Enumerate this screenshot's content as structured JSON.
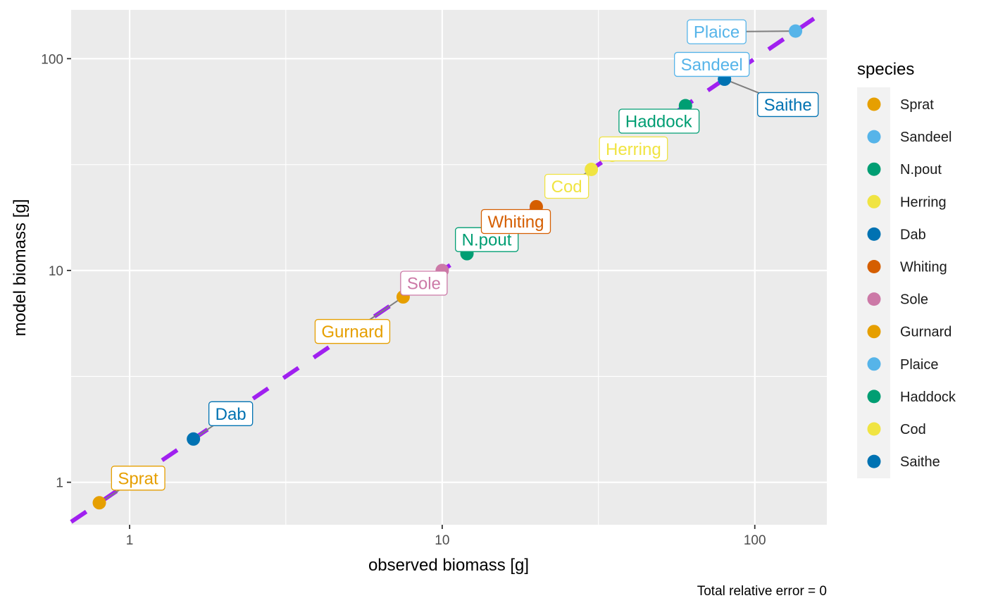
{
  "chart_data": {
    "type": "scatter",
    "x_scale": "log10",
    "y_scale": "log10",
    "xlabel": "observed biomass [g]",
    "ylabel": "model biomass [g]",
    "xlim": [
      0.65,
      170
    ],
    "ylim": [
      0.63,
      170
    ],
    "x_ticks": [
      {
        "value": 1,
        "label": "1"
      },
      {
        "value": 10,
        "label": "10"
      },
      {
        "value": 100,
        "label": "100"
      }
    ],
    "y_ticks": [
      {
        "value": 1,
        "label": "1"
      },
      {
        "value": 10,
        "label": "10"
      },
      {
        "value": 100,
        "label": "100"
      }
    ],
    "x_minor_ticks": [
      3.16,
      31.6
    ],
    "y_minor_ticks": [
      3.16,
      31.6
    ],
    "reference_line": {
      "slope": 1,
      "intercept": 0,
      "style": "dashed",
      "color": "#a020f0"
    },
    "points": [
      {
        "species": "Sprat",
        "x": 0.8,
        "y": 0.8,
        "color": "#E69F00"
      },
      {
        "species": "Sandeel",
        "x": 80,
        "y": 80,
        "color": "#56B4E9"
      },
      {
        "species": "N.pout",
        "x": 12,
        "y": 12,
        "color": "#009E73"
      },
      {
        "species": "Herring",
        "x": 35,
        "y": 35,
        "color": "#F0E442"
      },
      {
        "species": "Dab",
        "x": 1.6,
        "y": 1.6,
        "color": "#0072B2"
      },
      {
        "species": "Whiting",
        "x": 20,
        "y": 20,
        "color": "#D55E00"
      },
      {
        "species": "Sole",
        "x": 10,
        "y": 10,
        "color": "#CC79A7"
      },
      {
        "species": "Gurnard",
        "x": 7.5,
        "y": 7.5,
        "color": "#E69F00"
      },
      {
        "species": "Plaice",
        "x": 135,
        "y": 135,
        "color": "#56B4E9"
      },
      {
        "species": "Haddock",
        "x": 60,
        "y": 60,
        "color": "#009E73"
      },
      {
        "species": "Cod",
        "x": 30,
        "y": 30,
        "color": "#F0E442"
      },
      {
        "species": "Saithe",
        "x": 80,
        "y": 80,
        "color": "#0072B2"
      }
    ],
    "legend": {
      "title": "species",
      "position": "right",
      "entries": [
        {
          "label": "Sprat",
          "color": "#E69F00"
        },
        {
          "label": "Sandeel",
          "color": "#56B4E9"
        },
        {
          "label": "N.pout",
          "color": "#009E73"
        },
        {
          "label": "Herring",
          "color": "#F0E442"
        },
        {
          "label": "Dab",
          "color": "#0072B2"
        },
        {
          "label": "Whiting",
          "color": "#D55E00"
        },
        {
          "label": "Sole",
          "color": "#CC79A7"
        },
        {
          "label": "Gurnard",
          "color": "#E69F00"
        },
        {
          "label": "Plaice",
          "color": "#56B4E9"
        },
        {
          "label": "Haddock",
          "color": "#009E73"
        },
        {
          "label": "Cod",
          "color": "#F0E442"
        },
        {
          "label": "Saithe",
          "color": "#0072B2"
        }
      ]
    },
    "caption": "Total relative error = 0"
  }
}
